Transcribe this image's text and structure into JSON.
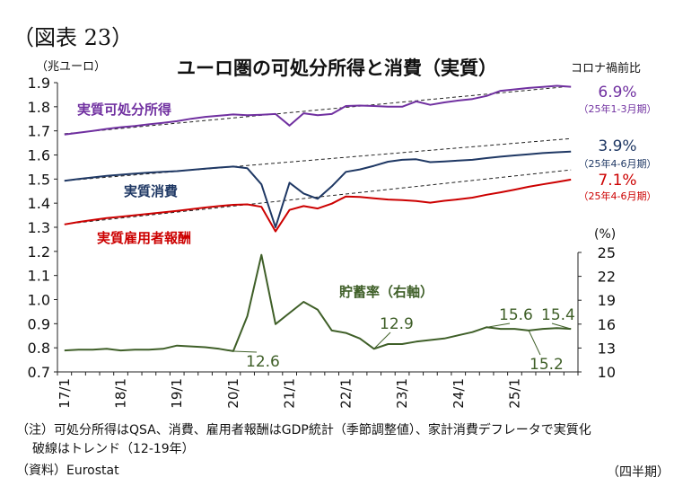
{
  "figure_label": "（図表 23）",
  "notes": {
    "note_line1": "（注）可処分所得はQSA、消費、雇用者報酬はGDP統計（季節調整値）、家計消費デフレータで実質化",
    "note_line2": "破線はトレンド（12-19年）",
    "source": "（資料）Eurostat",
    "frequency": "（四半期）"
  },
  "colors": {
    "income": "#7030a0",
    "consumption": "#1f3864",
    "compensation": "#cc0000",
    "saving": "#3f5f28",
    "trend": "#222222",
    "axis": "#222222"
  },
  "chart_data": {
    "type": "line",
    "title": "ユーロ圏の可処分所得と消費（実質）",
    "left_axis": {
      "unit": "（兆ユーロ）",
      "range": [
        0.7,
        1.9
      ],
      "ticks": [
        0.7,
        0.8,
        0.9,
        1.0,
        1.1,
        1.2,
        1.3,
        1.4,
        1.5,
        1.6,
        1.7,
        1.8,
        1.9
      ],
      "tick_labels": [
        "0.7",
        "0.8",
        "0.9",
        "1.0",
        "1.1",
        "1.2",
        "1.3",
        "1.4",
        "1.5",
        "1.6",
        "1.7",
        "1.8",
        "1.9"
      ]
    },
    "right_axis": {
      "unit": "(%)",
      "range": [
        10,
        25
      ],
      "ticks": [
        10,
        13,
        16,
        19,
        22,
        25
      ],
      "tick_labels": [
        "10",
        "13",
        "16",
        "19",
        "22",
        "25"
      ]
    },
    "x_labels": [
      "17/1",
      "18/1",
      "19/1",
      "20/1",
      "21/1",
      "22/1",
      "23/1",
      "24/1",
      "25/1"
    ],
    "yoy_header": "コロナ禍前比",
    "series": [
      {
        "name": "実質可処分所得",
        "axis": "left",
        "values": [
          1.685,
          1.692,
          1.7,
          1.708,
          1.715,
          1.72,
          1.727,
          1.733,
          1.74,
          1.75,
          1.758,
          1.763,
          1.768,
          1.765,
          1.767,
          1.77,
          1.722,
          1.773,
          1.765,
          1.77,
          1.803,
          1.805,
          1.803,
          1.8,
          1.8,
          1.822,
          1.808,
          1.818,
          1.826,
          1.832,
          1.845,
          1.866,
          1.872,
          1.878,
          1.882,
          1.887,
          1.883
        ],
        "trend": [
          1.688,
          1.885
        ],
        "change": "6.9%",
        "change_period": "（25年1-3月期）"
      },
      {
        "name": "実質消費",
        "axis": "left",
        "values": [
          1.493,
          1.5,
          1.507,
          1.513,
          1.518,
          1.523,
          1.527,
          1.53,
          1.533,
          1.538,
          1.543,
          1.548,
          1.552,
          1.545,
          1.478,
          1.3,
          1.485,
          1.44,
          1.418,
          1.47,
          1.53,
          1.54,
          1.555,
          1.572,
          1.58,
          1.582,
          1.57,
          1.573,
          1.577,
          1.58,
          1.587,
          1.593,
          1.598,
          1.603,
          1.608,
          1.611,
          1.614
        ],
        "trend": [
          1.493,
          1.668
        ],
        "change": "3.9%",
        "change_period": "（25年4-6月期）"
      },
      {
        "name": "実質雇用者報酬",
        "axis": "left",
        "values": [
          1.312,
          1.322,
          1.33,
          1.338,
          1.344,
          1.35,
          1.356,
          1.362,
          1.368,
          1.375,
          1.382,
          1.388,
          1.393,
          1.395,
          1.385,
          1.283,
          1.372,
          1.388,
          1.378,
          1.398,
          1.428,
          1.426,
          1.42,
          1.415,
          1.413,
          1.409,
          1.402,
          1.41,
          1.416,
          1.423,
          1.435,
          1.445,
          1.456,
          1.468,
          1.478,
          1.488,
          1.498
        ],
        "trend": [
          1.313,
          1.538
        ],
        "change": "7.1%",
        "change_period": "（25年4-6月期）"
      },
      {
        "name": "貯蓄率（右軸）",
        "axis": "right",
        "values": [
          12.7,
          12.8,
          12.8,
          12.9,
          12.7,
          12.8,
          12.8,
          12.9,
          13.3,
          13.2,
          13.1,
          12.9,
          12.6,
          17.0,
          24.7,
          16.0,
          17.4,
          18.8,
          17.8,
          15.2,
          14.9,
          14.2,
          12.9,
          13.5,
          13.5,
          13.8,
          14.0,
          14.2,
          14.6,
          15.0,
          15.6,
          15.4,
          15.4,
          15.2,
          15.4,
          15.5,
          15.4
        ],
        "annotations": [
          {
            "label": "12.6",
            "index": 12
          },
          {
            "label": "12.9",
            "index": 22
          },
          {
            "label": "15.6",
            "index": 30
          },
          {
            "label": "15.4",
            "index": 36
          },
          {
            "label": "15.2",
            "index": 33
          }
        ]
      }
    ],
    "grid": false,
    "legend": "inline labels"
  }
}
